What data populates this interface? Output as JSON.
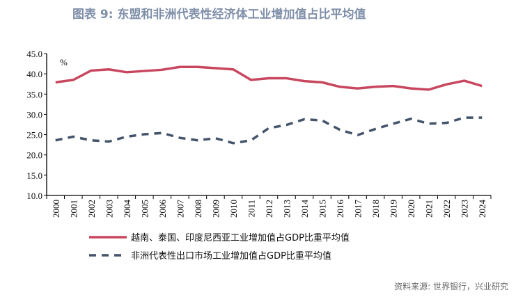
{
  "title": "图表 9:  东盟和非洲代表性经济体工业增加值占比平均值",
  "source": "资料来源:   世界银行，兴业研究",
  "chart_data": {
    "type": "line",
    "unit_label": "%",
    "ylim": [
      10,
      45
    ],
    "yticks": [
      "10.0",
      "15.0",
      "20.0",
      "25.0",
      "30.0",
      "35.0",
      "40.0",
      "45.0"
    ],
    "categories": [
      "2000",
      "2001",
      "2002",
      "2003",
      "2004",
      "2005",
      "2006",
      "2007",
      "2008",
      "2009",
      "2010",
      "2011",
      "2012",
      "2013",
      "2014",
      "2015",
      "2016",
      "2017",
      "2018",
      "2019",
      "2020",
      "2021",
      "2022",
      "2023",
      "2024"
    ],
    "series": [
      {
        "name": "越南、泰国、印度尼西亚工业增加值占GDP比重平均值",
        "color": "#c8475e",
        "style": "solid",
        "values": [
          37.9,
          38.5,
          40.8,
          41.1,
          40.4,
          40.7,
          41.0,
          41.7,
          41.7,
          41.4,
          41.1,
          38.5,
          38.9,
          38.9,
          38.2,
          37.9,
          36.8,
          36.4,
          36.8,
          37.0,
          36.4,
          36.1,
          37.4,
          38.3,
          37.0
        ]
      },
      {
        "name": "非洲代表性出口市场工业增加值占GDP比重平均值",
        "color": "#44546a",
        "style": "dashed",
        "values": [
          23.6,
          24.5,
          23.6,
          23.3,
          24.5,
          25.1,
          25.4,
          24.2,
          23.6,
          24.1,
          22.9,
          23.6,
          26.6,
          27.4,
          28.8,
          28.5,
          26.2,
          24.9,
          26.4,
          27.7,
          28.9,
          27.7,
          27.9,
          29.2,
          29.2
        ]
      }
    ],
    "grid": false,
    "legend": "bottom"
  }
}
